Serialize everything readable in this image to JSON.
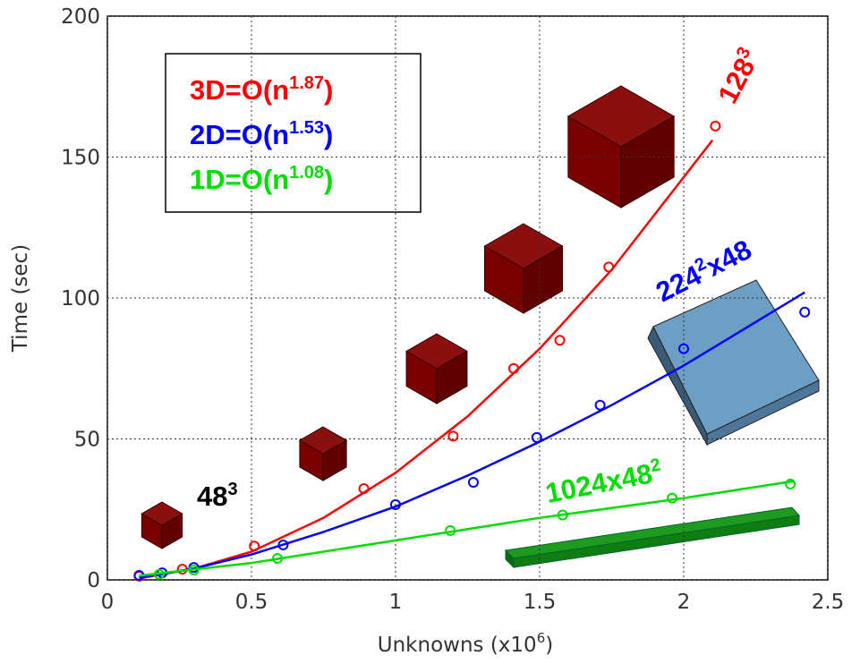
{
  "chart_data": {
    "type": "scatter",
    "ylabel": "Time (sec)",
    "xlabel": [
      "Unknowns (x10",
      "6",
      ")"
    ],
    "xlim": [
      0,
      2.5
    ],
    "ylim": [
      0,
      200
    ],
    "xticks": [
      0,
      0.5,
      1,
      1.5,
      2,
      2.5
    ],
    "yticks": [
      0,
      50,
      100,
      150,
      200
    ],
    "grid": true,
    "series": [
      {
        "color": "#ff0000",
        "legend_label": [
          "3D=O(n",
          "1.87",
          ")"
        ],
        "annotation": [
          "128",
          "3"
        ],
        "x": [
          0.11,
          0.26,
          0.51,
          0.89,
          1.2,
          1.41,
          1.57,
          1.74,
          2.11
        ],
        "values": [
          1.3,
          3.8,
          12,
          32.4,
          51,
          75,
          85,
          111,
          161
        ],
        "fit_x": [
          0.11,
          0.3,
          0.5,
          0.75,
          1.0,
          1.25,
          1.5,
          1.75,
          2.1
        ],
        "fit_values": [
          0.5,
          4,
          10,
          22,
          38,
          58,
          82,
          110,
          156
        ]
      },
      {
        "color": "#0000ff",
        "legend_label": [
          "2D=O(n",
          "1.53",
          ")"
        ],
        "annotation": [
          "224",
          "2",
          "x48"
        ],
        "x": [
          0.11,
          0.19,
          0.3,
          0.61,
          1.0,
          1.27,
          1.49,
          1.71,
          2.0,
          2.42
        ],
        "values": [
          1.6,
          2.5,
          4.4,
          12.4,
          26.7,
          34.6,
          50.5,
          62,
          82,
          95
        ],
        "fit_x": [
          0.11,
          0.3,
          0.5,
          0.75,
          1.0,
          1.25,
          1.5,
          1.75,
          2.0,
          2.42
        ],
        "fit_values": [
          0.8,
          4,
          9,
          17,
          26,
          37,
          49,
          62,
          76,
          102
        ]
      },
      {
        "color": "#00dd00",
        "legend_label": [
          "1D=O(n",
          "1.08",
          ")"
        ],
        "annotation": [
          "1024x48",
          "2"
        ],
        "x": [
          0.18,
          0.3,
          0.59,
          1.19,
          1.58,
          1.96,
          2.37
        ],
        "values": [
          2,
          3.5,
          7.6,
          17.5,
          23,
          29,
          34
        ],
        "fit_x": [
          0.11,
          0.5,
          1.0,
          1.5,
          2.0,
          2.38
        ],
        "fit_values": [
          1.5,
          6,
          14,
          22,
          29,
          35
        ]
      }
    ],
    "annotations": [
      {
        "text": [
          "48",
          "3"
        ]
      }
    ]
  }
}
